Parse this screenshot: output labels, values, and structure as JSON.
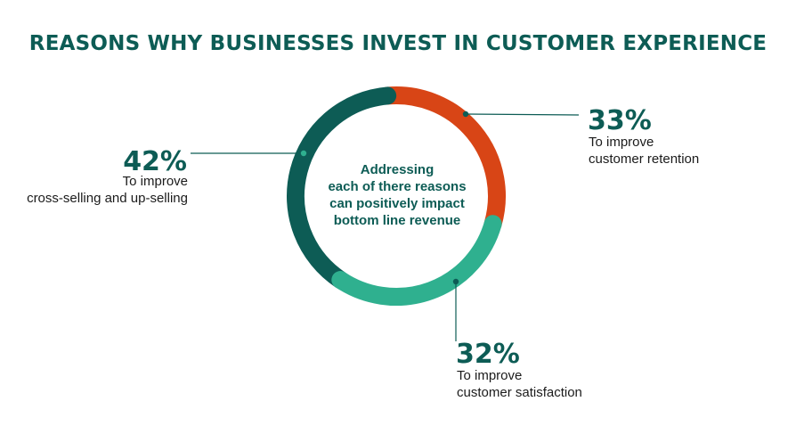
{
  "title": "REASONS WHY BUSINESSES INVEST IN CUSTOMER EXPERIENCE",
  "center_text": [
    "Addressing",
    "each of there reasons",
    "can positively impact",
    "bottom line revenue"
  ],
  "colors": {
    "title": "#0d5c55",
    "retention": "#d84516",
    "satisfaction": "#2fb08f",
    "cross_selling": "#0d5c55"
  },
  "chart_data": {
    "type": "pie",
    "donut": true,
    "title": "REASONS WHY BUSINESSES INVEST IN CUSTOMER EXPERIENCE",
    "slices": [
      {
        "label": "To improve customer retention",
        "value": 33,
        "display": "33%",
        "desc1": "To improve",
        "desc2": "customer retention",
        "color": "#d84516"
      },
      {
        "label": "To improve customer satisfaction",
        "value": 32,
        "display": "32%",
        "desc1": "To improve",
        "desc2": "customer satisfaction",
        "color": "#2fb08f"
      },
      {
        "label": "To improve cross-selling and up-selling",
        "value": 42,
        "display": "42%",
        "desc1": "To improve",
        "desc2": "cross-selling and up-selling",
        "color": "#0d5c55"
      }
    ]
  }
}
